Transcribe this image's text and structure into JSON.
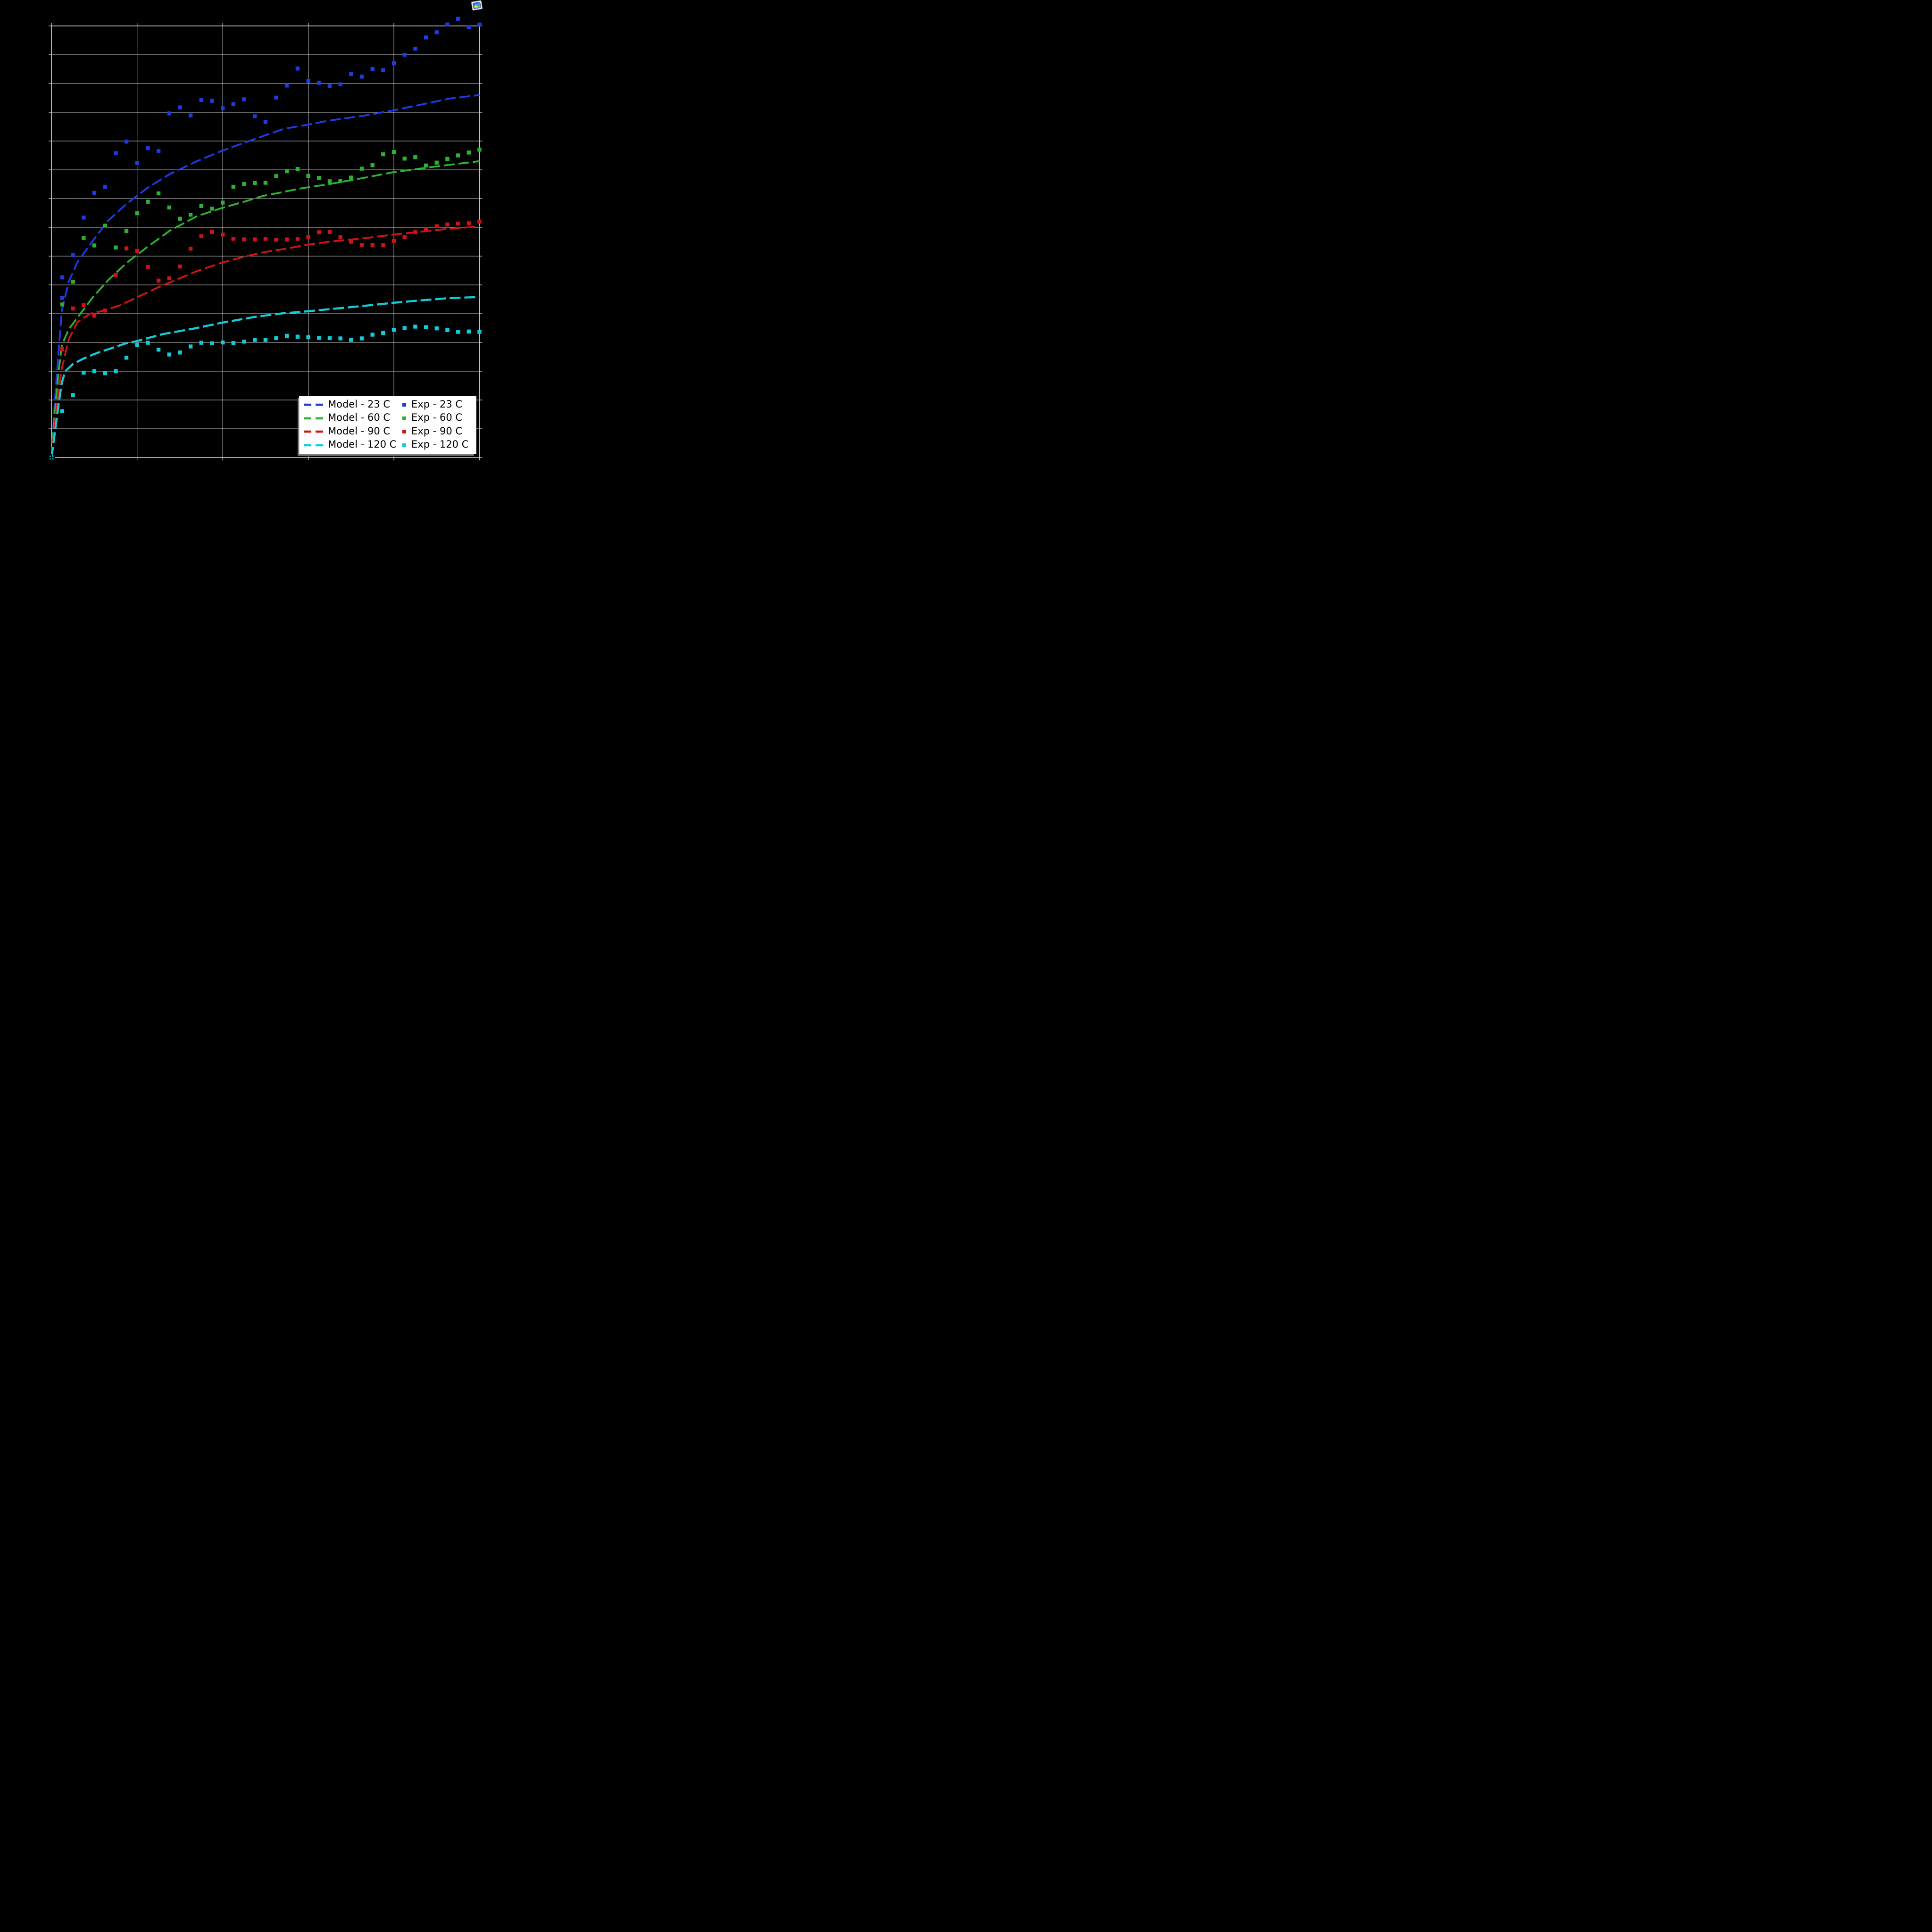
{
  "figure": {
    "background_color": "#000000",
    "title": "",
    "x_axis_label": "",
    "y_axis_label": "",
    "tick_labels_visible": false
  },
  "icons": {
    "top_right": "broken-image-icon"
  },
  "chart_data": {
    "type": "scatter",
    "title": "",
    "xlabel": "",
    "ylabel": "",
    "xlim": [
      0,
      5
    ],
    "ylim": [
      0,
      15
    ],
    "grid": true,
    "x_gridlines": [
      0,
      1,
      2,
      3,
      4,
      5
    ],
    "y_gridlines": [
      0,
      1,
      2,
      3,
      4,
      5,
      6,
      7,
      8,
      9,
      10,
      11,
      12,
      13,
      14,
      15
    ],
    "legend_position": "lower right",
    "colors": {
      "blue": "#1d3ae3",
      "green": "#2cb232",
      "red": "#ce1216",
      "cyan": "#0dced8",
      "grid": "#c9c9c9",
      "spine": "#c9c9c9",
      "legend_bg": "#ffffff",
      "legend_shadow": "#7f7f7f",
      "origin_cross": "#000000"
    },
    "series": [
      {
        "name": "Model - 23 C",
        "kind": "line",
        "style": "dashed",
        "color": "#1d3ae3",
        "points": [
          [
            0,
            0
          ],
          [
            0.04,
            2.0
          ],
          [
            0.08,
            3.6
          ],
          [
            0.12,
            5.1
          ],
          [
            0.2,
            6.1
          ],
          [
            0.3,
            6.78
          ],
          [
            0.45,
            7.4
          ],
          [
            0.65,
            8.2
          ],
          [
            0.87,
            8.8
          ],
          [
            1.11,
            9.35
          ],
          [
            1.38,
            9.85
          ],
          [
            1.7,
            10.3
          ],
          [
            2.0,
            10.67
          ],
          [
            2.25,
            10.94
          ],
          [
            2.47,
            11.17
          ],
          [
            2.72,
            11.43
          ],
          [
            3.0,
            11.57
          ],
          [
            3.24,
            11.71
          ],
          [
            3.65,
            11.88
          ],
          [
            4.0,
            12.07
          ],
          [
            4.31,
            12.26
          ],
          [
            4.64,
            12.47
          ],
          [
            5.0,
            12.6
          ]
        ]
      },
      {
        "name": "Model - 60 C",
        "kind": "line",
        "style": "dashed",
        "color": "#2cb232",
        "points": [
          [
            0,
            0
          ],
          [
            0.04,
            1.6
          ],
          [
            0.08,
            2.9
          ],
          [
            0.12,
            3.9
          ],
          [
            0.2,
            4.45
          ],
          [
            0.35,
            5.05
          ],
          [
            0.48,
            5.56
          ],
          [
            0.66,
            6.16
          ],
          [
            0.88,
            6.77
          ],
          [
            1.12,
            7.32
          ],
          [
            1.38,
            7.88
          ],
          [
            1.7,
            8.39
          ],
          [
            2.0,
            8.68
          ],
          [
            2.25,
            8.89
          ],
          [
            2.47,
            9.09
          ],
          [
            2.69,
            9.22
          ],
          [
            2.91,
            9.35
          ],
          [
            3.24,
            9.5
          ],
          [
            3.65,
            9.72
          ],
          [
            4.0,
            9.92
          ],
          [
            4.5,
            10.12
          ],
          [
            5.0,
            10.3
          ]
        ]
      },
      {
        "name": "Model - 90 C",
        "kind": "line",
        "style": "dashed",
        "color": "#ce1216",
        "points": [
          [
            0,
            0
          ],
          [
            0.04,
            1.2
          ],
          [
            0.08,
            2.3
          ],
          [
            0.12,
            3.1
          ],
          [
            0.2,
            4.1
          ],
          [
            0.3,
            4.7
          ],
          [
            0.45,
            5.0
          ],
          [
            0.6,
            5.1
          ],
          [
            0.81,
            5.3
          ],
          [
            1.0,
            5.57
          ],
          [
            1.25,
            5.92
          ],
          [
            1.46,
            6.18
          ],
          [
            1.7,
            6.48
          ],
          [
            2.0,
            6.78
          ],
          [
            2.25,
            6.98
          ],
          [
            2.47,
            7.13
          ],
          [
            2.72,
            7.25
          ],
          [
            3.0,
            7.4
          ],
          [
            3.24,
            7.5
          ],
          [
            3.65,
            7.62
          ],
          [
            4.0,
            7.75
          ],
          [
            4.31,
            7.85
          ],
          [
            4.64,
            7.95
          ],
          [
            5.0,
            8.03
          ]
        ]
      },
      {
        "name": "Model - 120 C",
        "kind": "line",
        "style": "dashed",
        "color": "#0dced8",
        "points": [
          [
            0,
            0
          ],
          [
            0.04,
            0.9
          ],
          [
            0.08,
            1.8
          ],
          [
            0.12,
            2.6
          ],
          [
            0.16,
            3.0
          ],
          [
            0.25,
            3.25
          ],
          [
            0.36,
            3.42
          ],
          [
            0.5,
            3.6
          ],
          [
            0.86,
            3.96
          ],
          [
            1.0,
            4.05
          ],
          [
            1.3,
            4.29
          ],
          [
            1.66,
            4.48
          ],
          [
            2.0,
            4.69
          ],
          [
            2.38,
            4.89
          ],
          [
            2.69,
            5.01
          ],
          [
            2.91,
            5.06
          ],
          [
            3.4,
            5.2
          ],
          [
            3.65,
            5.27
          ],
          [
            4.0,
            5.38
          ],
          [
            4.31,
            5.46
          ],
          [
            4.64,
            5.54
          ],
          [
            5.0,
            5.58
          ]
        ]
      },
      {
        "name": "Exp - 23 C",
        "kind": "scatter",
        "marker": "square",
        "color": "#1d3ae3",
        "points": [
          [
            0.125,
            5.55
          ],
          [
            0.125,
            6.26
          ],
          [
            0.25,
            7.03
          ],
          [
            0.375,
            8.34
          ],
          [
            0.5,
            9.2
          ],
          [
            0.625,
            9.41
          ],
          [
            0.75,
            10.58
          ],
          [
            0.875,
            10.98
          ],
          [
            1.0,
            10.24
          ],
          [
            1.125,
            10.75
          ],
          [
            1.25,
            10.65
          ],
          [
            1.375,
            11.96
          ],
          [
            1.5,
            12.17
          ],
          [
            1.625,
            11.89
          ],
          [
            1.75,
            12.43
          ],
          [
            1.875,
            12.4
          ],
          [
            2.0,
            12.14
          ],
          [
            2.125,
            12.28
          ],
          [
            2.25,
            12.45
          ],
          [
            2.375,
            11.86
          ],
          [
            2.5,
            11.66
          ],
          [
            2.625,
            12.51
          ],
          [
            2.75,
            12.93
          ],
          [
            2.875,
            13.52
          ],
          [
            3.0,
            13.09
          ],
          [
            3.125,
            13.02
          ],
          [
            3.25,
            12.91
          ],
          [
            3.375,
            12.97
          ],
          [
            3.5,
            13.33
          ],
          [
            3.625,
            13.24
          ],
          [
            3.75,
            13.51
          ],
          [
            3.875,
            13.46
          ],
          [
            4.0,
            13.7
          ],
          [
            4.125,
            14.0
          ],
          [
            4.25,
            14.21
          ],
          [
            4.375,
            14.6
          ],
          [
            4.5,
            14.78
          ],
          [
            4.625,
            15.05
          ],
          [
            4.75,
            15.25
          ],
          [
            4.875,
            14.96
          ],
          [
            5.0,
            15.05
          ]
        ]
      },
      {
        "name": "Exp - 60 C",
        "kind": "scatter",
        "marker": "square",
        "color": "#2cb232",
        "points": [
          [
            0.125,
            5.32
          ],
          [
            0.25,
            6.11
          ],
          [
            0.375,
            7.63
          ],
          [
            0.5,
            7.37
          ],
          [
            0.625,
            8.06
          ],
          [
            0.75,
            7.3
          ],
          [
            0.875,
            7.87
          ],
          [
            1.0,
            8.49
          ],
          [
            1.125,
            8.89
          ],
          [
            1.25,
            9.18
          ],
          [
            1.375,
            8.69
          ],
          [
            1.5,
            8.3
          ],
          [
            1.625,
            8.44
          ],
          [
            1.75,
            8.74
          ],
          [
            1.875,
            8.65
          ],
          [
            2.0,
            8.86
          ],
          [
            2.125,
            9.41
          ],
          [
            2.25,
            9.51
          ],
          [
            2.375,
            9.54
          ],
          [
            2.5,
            9.55
          ],
          [
            2.625,
            9.78
          ],
          [
            2.75,
            9.95
          ],
          [
            2.875,
            10.03
          ],
          [
            3.0,
            9.79
          ],
          [
            3.125,
            9.72
          ],
          [
            3.25,
            9.6
          ],
          [
            3.375,
            9.61
          ],
          [
            3.5,
            9.73
          ],
          [
            3.625,
            10.04
          ],
          [
            3.75,
            10.16
          ],
          [
            3.875,
            10.54
          ],
          [
            4.0,
            10.62
          ],
          [
            4.125,
            10.39
          ],
          [
            4.25,
            10.44
          ],
          [
            4.375,
            10.15
          ],
          [
            4.5,
            10.25
          ],
          [
            4.625,
            10.38
          ],
          [
            4.75,
            10.5
          ],
          [
            4.875,
            10.6
          ],
          [
            5.0,
            10.7
          ]
        ]
      },
      {
        "name": "Exp - 90 C",
        "kind": "scatter",
        "marker": "square",
        "color": "#ce1216",
        "points": [
          [
            0.125,
            3.77
          ],
          [
            0.25,
            5.18
          ],
          [
            0.375,
            5.3
          ],
          [
            0.5,
            4.93
          ],
          [
            0.625,
            5.11
          ],
          [
            0.75,
            6.35
          ],
          [
            0.875,
            7.27
          ],
          [
            1.0,
            7.18
          ],
          [
            1.125,
            6.63
          ],
          [
            1.25,
            6.15
          ],
          [
            1.375,
            6.23
          ],
          [
            1.5,
            6.64
          ],
          [
            1.625,
            7.26
          ],
          [
            1.75,
            7.69
          ],
          [
            1.875,
            7.84
          ],
          [
            2.0,
            7.75
          ],
          [
            2.125,
            7.6
          ],
          [
            2.25,
            7.58
          ],
          [
            2.375,
            7.58
          ],
          [
            2.5,
            7.6
          ],
          [
            2.625,
            7.57
          ],
          [
            2.75,
            7.58
          ],
          [
            2.875,
            7.6
          ],
          [
            3.0,
            7.66
          ],
          [
            3.125,
            7.83
          ],
          [
            3.25,
            7.84
          ],
          [
            3.375,
            7.66
          ],
          [
            3.5,
            7.5
          ],
          [
            3.625,
            7.39
          ],
          [
            3.75,
            7.39
          ],
          [
            3.875,
            7.38
          ],
          [
            4.0,
            7.53
          ],
          [
            4.125,
            7.66
          ],
          [
            4.25,
            7.83
          ],
          [
            4.375,
            7.93
          ],
          [
            4.5,
            8.04
          ],
          [
            4.625,
            8.1
          ],
          [
            4.75,
            8.13
          ],
          [
            4.875,
            8.14
          ],
          [
            5.0,
            8.2
          ]
        ]
      },
      {
        "name": "Exp - 120 C",
        "kind": "scatter",
        "marker": "square",
        "color": "#0dced8",
        "points": [
          [
            0,
            0
          ],
          [
            0.125,
            1.61
          ],
          [
            0.25,
            2.17
          ],
          [
            0.375,
            2.95
          ],
          [
            0.5,
            3.0
          ],
          [
            0.625,
            2.93
          ],
          [
            0.75,
            3.0
          ],
          [
            0.875,
            3.47
          ],
          [
            1.0,
            3.91
          ],
          [
            1.125,
            3.99
          ],
          [
            1.25,
            3.75
          ],
          [
            1.375,
            3.58
          ],
          [
            1.5,
            3.65
          ],
          [
            1.625,
            3.86
          ],
          [
            1.75,
            3.99
          ],
          [
            1.875,
            3.97
          ],
          [
            2.0,
            4.0
          ],
          [
            2.125,
            3.98
          ],
          [
            2.25,
            4.03
          ],
          [
            2.375,
            4.09
          ],
          [
            2.5,
            4.09
          ],
          [
            2.625,
            4.15
          ],
          [
            2.75,
            4.23
          ],
          [
            2.875,
            4.2
          ],
          [
            3.0,
            4.18
          ],
          [
            3.125,
            4.16
          ],
          [
            3.25,
            4.15
          ],
          [
            3.375,
            4.14
          ],
          [
            3.5,
            4.09
          ],
          [
            3.625,
            4.14
          ],
          [
            3.75,
            4.27
          ],
          [
            3.875,
            4.33
          ],
          [
            4.0,
            4.44
          ],
          [
            4.125,
            4.5
          ],
          [
            4.25,
            4.55
          ],
          [
            4.375,
            4.53
          ],
          [
            4.5,
            4.49
          ],
          [
            4.625,
            4.43
          ],
          [
            4.75,
            4.37
          ],
          [
            4.875,
            4.38
          ],
          [
            5.0,
            4.37
          ]
        ]
      }
    ],
    "annotations": {
      "origin_marker": "cyan square with black tick cross at (0,0)"
    }
  }
}
